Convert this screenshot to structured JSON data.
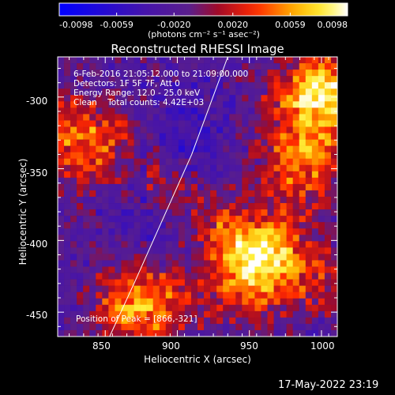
{
  "colorbar": {
    "ticks": [
      "-0.0098",
      "-0.0059",
      "-0.0020",
      "0.0020",
      "0.0059",
      "0.0098"
    ],
    "tick_values": [
      -0.0098,
      -0.0059,
      -0.002,
      0.002,
      0.0059,
      0.0098
    ],
    "units_label": "(photons cm⁻² s⁻¹ asec⁻²)"
  },
  "plot": {
    "title": "Reconstructed RHESSI Image",
    "info_lines": [
      "6-Feb-2016 21:05:12.000 to 21:09:00.000",
      "Detectors: 1F 5F 7F, Att 0",
      "Energy Range: 12.0 - 25.0 keV",
      "Clean    Total counts: 4.42E+03"
    ],
    "peak_label": "Position of Peak = [866,-321]",
    "xlabel": "Heliocentric X (arcsec)",
    "ylabel": "Heliocentric Y (arcsec)",
    "xticks": [
      "850",
      "900",
      "950",
      "1000"
    ],
    "yticks": [
      "-300",
      "-350",
      "-400",
      "-450"
    ]
  },
  "footer": {
    "timestamp": "17-May-2022 23:19"
  },
  "chart_data": {
    "type": "heatmap",
    "title": "Reconstructed RHESSI Image",
    "xlabel": "Heliocentric X (arcsec)",
    "ylabel": "Heliocentric Y (arcsec)",
    "xlim": [
      817,
      1011
    ],
    "ylim": [
      -467,
      -272
    ],
    "zlim": [
      -0.0098,
      0.0098
    ],
    "colormap": "red-temperature",
    "colors": {
      "low": "#0000ff",
      "mid": "#5a1aa0",
      "high": "#ffffff",
      "hot": "#ff2000",
      "warm": "#ffd000"
    },
    "limb_curve": {
      "x": [
        853,
        870,
        890,
        910,
        935
      ],
      "y": [
        -467,
        -430,
        -385,
        -340,
        -272
      ]
    },
    "sources": [
      {
        "x": 1000,
        "y": -300,
        "strength": 1.0,
        "note": "upper-right hot region"
      },
      {
        "x": 952,
        "y": -420,
        "strength": 0.9,
        "note": "lower-right hot region"
      },
      {
        "x": 875,
        "y": -445,
        "strength": 0.8,
        "note": "lower-left hot region"
      },
      {
        "x": 835,
        "y": -330,
        "strength": 0.6,
        "note": "left arc"
      },
      {
        "x": 985,
        "y": -350,
        "strength": 0.6,
        "note": "right arc"
      }
    ],
    "peak": {
      "x": 866,
      "y": -321
    }
  }
}
